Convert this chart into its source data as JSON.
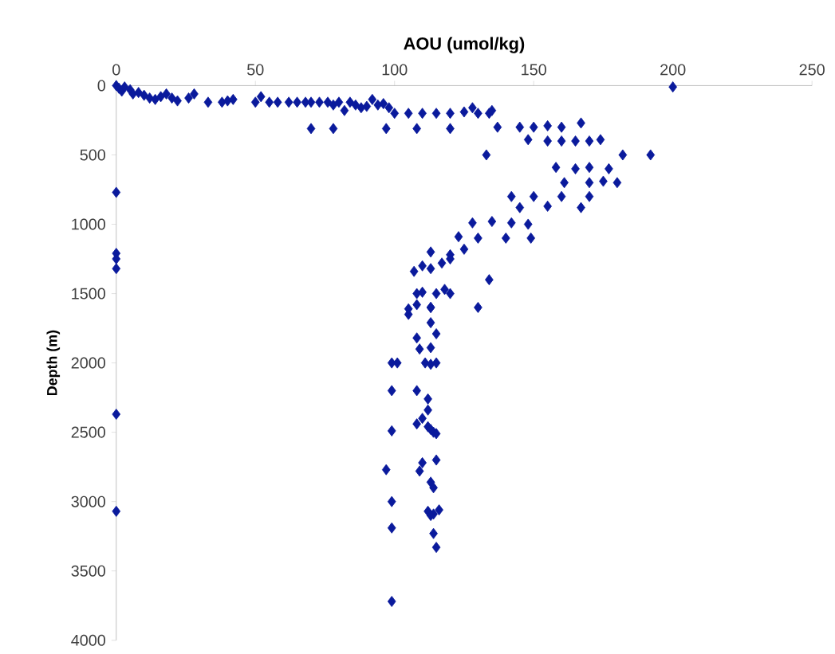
{
  "chart_data": {
    "type": "scatter",
    "xlabel": "AOU (umol/kg)",
    "ylabel": "Depth (m)",
    "color": "#0a1a9c",
    "marker": "diamond",
    "xlim": [
      0,
      250
    ],
    "ylim": [
      4000,
      0
    ],
    "xticks": [
      0,
      50,
      100,
      150,
      200,
      250
    ],
    "yticks": [
      0,
      500,
      1000,
      1500,
      2000,
      2500,
      3000,
      3500,
      4000
    ],
    "x": [
      0,
      1,
      2,
      3,
      5,
      6,
      8,
      10,
      12,
      14,
      16,
      18,
      20,
      22,
      26,
      28,
      33,
      38,
      40,
      42,
      50,
      52,
      55,
      58,
      62,
      65,
      68,
      70,
      73,
      76,
      78,
      80,
      82,
      84,
      86,
      88,
      90,
      92,
      94,
      96,
      98,
      70,
      78,
      97,
      108,
      120,
      100,
      105,
      110,
      115,
      120,
      125,
      128,
      130,
      134,
      135,
      137,
      145,
      150,
      155,
      160,
      167,
      148,
      155,
      160,
      165,
      170,
      174,
      133,
      182,
      192,
      158,
      165,
      170,
      177,
      161,
      170,
      180,
      175,
      142,
      150,
      160,
      170,
      145,
      155,
      167,
      128,
      135,
      142,
      148,
      123,
      130,
      140,
      149,
      113,
      120,
      125,
      134,
      130,
      113,
      107,
      110,
      113,
      117,
      120,
      108,
      110,
      115,
      118,
      120,
      105,
      105,
      108,
      113,
      113,
      108,
      115,
      109,
      113,
      99,
      101,
      111,
      113,
      115,
      99,
      108,
      112,
      112,
      108,
      110,
      112,
      114,
      115,
      113,
      99,
      115,
      110,
      109,
      97,
      113,
      114,
      99,
      112,
      114,
      116,
      113,
      99,
      114,
      115,
      99,
      0,
      0,
      0,
      0,
      0,
      0,
      200
    ],
    "values": [
      0,
      20,
      40,
      10,
      30,
      60,
      50,
      70,
      90,
      100,
      80,
      60,
      90,
      110,
      90,
      60,
      120,
      120,
      110,
      100,
      120,
      80,
      120,
      120,
      120,
      120,
      120,
      120,
      120,
      120,
      140,
      120,
      180,
      120,
      140,
      160,
      150,
      100,
      140,
      130,
      160,
      310,
      310,
      310,
      310,
      310,
      200,
      200,
      200,
      200,
      200,
      190,
      160,
      200,
      200,
      180,
      300,
      300,
      300,
      290,
      300,
      270,
      390,
      400,
      400,
      400,
      400,
      390,
      500,
      500,
      500,
      590,
      600,
      590,
      600,
      700,
      700,
      700,
      690,
      800,
      800,
      800,
      800,
      880,
      870,
      880,
      990,
      980,
      990,
      1000,
      1090,
      1100,
      1100,
      1100,
      1200,
      1220,
      1180,
      1400,
      1600,
      1600,
      1340,
      1300,
      1320,
      1280,
      1250,
      1500,
      1490,
      1500,
      1470,
      1500,
      1650,
      1610,
      1580,
      1600,
      1710,
      1820,
      1790,
      1900,
      1890,
      2000,
      2000,
      2000,
      2010,
      2000,
      2200,
      2200,
      2260,
      2340,
      2440,
      2400,
      2460,
      2500,
      2510,
      2480,
      2490,
      2700,
      2720,
      2780,
      2770,
      2860,
      2900,
      3000,
      3070,
      3090,
      3060,
      3100,
      3190,
      3230,
      3330,
      3720,
      770,
      1210,
      1250,
      1320,
      2370,
      3070,
      10
    ]
  }
}
